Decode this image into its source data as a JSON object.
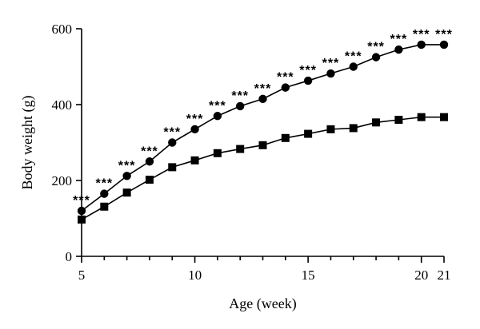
{
  "chart_data": {
    "type": "line",
    "title": "",
    "xlabel": "Age (week)",
    "ylabel": "Body weight (g)",
    "xlim": [
      5,
      21
    ],
    "ylim": [
      0,
      600
    ],
    "x_ticks": [
      5,
      10,
      15,
      20,
      21
    ],
    "y_ticks": [
      0,
      200,
      400,
      600
    ],
    "grid": false,
    "x": [
      5,
      6,
      7,
      8,
      9,
      10,
      11,
      12,
      13,
      14,
      15,
      16,
      17,
      18,
      19,
      20,
      21
    ],
    "series": [
      {
        "marker": "circle",
        "values": [
          120,
          165,
          212,
          250,
          300,
          335,
          370,
          396,
          415,
          445,
          463,
          482,
          500,
          525,
          545,
          558,
          558
        ]
      },
      {
        "marker": "square",
        "values": [
          97,
          131,
          168,
          202,
          235,
          253,
          272,
          283,
          293,
          312,
          323,
          335,
          338,
          353,
          360,
          367,
          367
        ]
      }
    ],
    "significance": {
      "label": "***",
      "x": [
        5,
        6,
        7,
        8,
        9,
        10,
        11,
        12,
        13,
        14,
        15,
        16,
        17,
        18,
        19,
        20,
        21
      ]
    }
  }
}
